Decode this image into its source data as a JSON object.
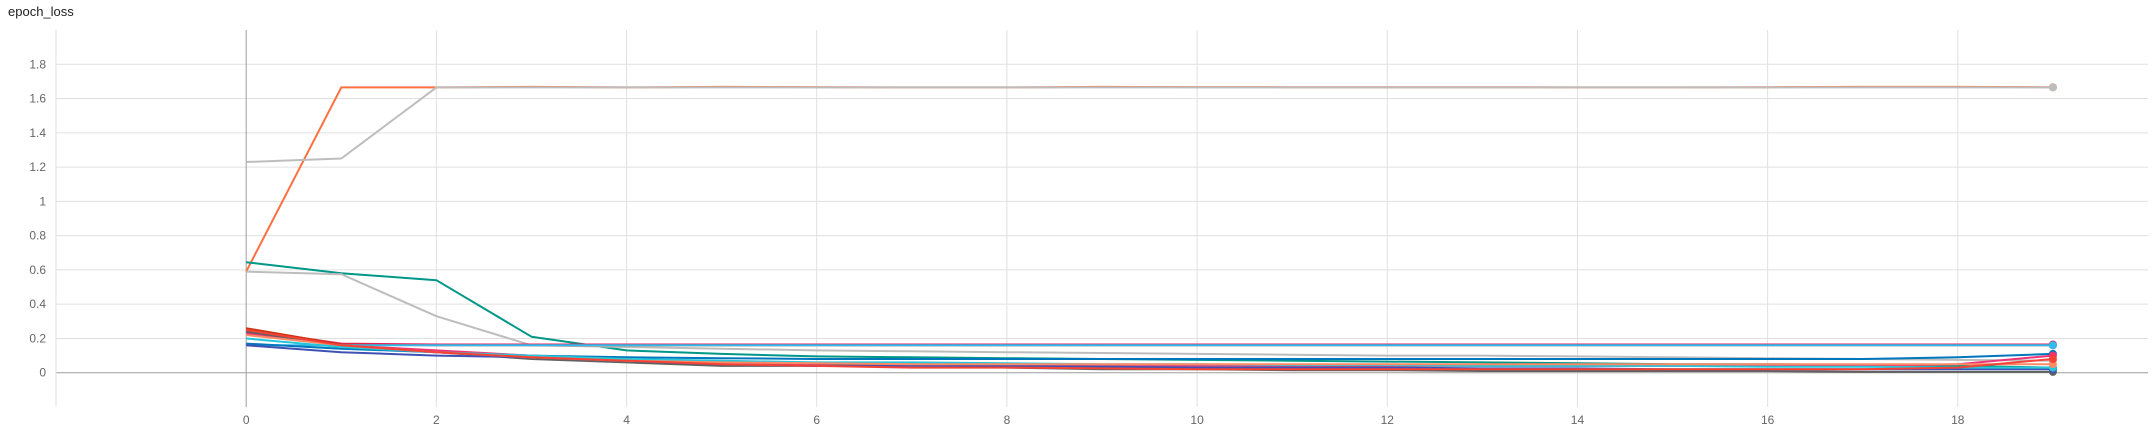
{
  "chart_data": {
    "type": "line",
    "title": "epoch_loss",
    "xlabel": "",
    "ylabel": "",
    "xlim": [
      -2,
      20
    ],
    "ylim": [
      -0.2,
      2.0
    ],
    "x_ticks": [
      0,
      2,
      4,
      6,
      8,
      10,
      12,
      14,
      16,
      18
    ],
    "y_ticks": [
      0,
      0.2,
      0.4,
      0.6,
      0.8,
      1,
      1.2,
      1.4,
      1.6,
      1.8
    ],
    "grid": true,
    "series": [
      {
        "color": "#ff7043",
        "values": [
          0.59,
          1.665,
          1.665,
          1.668,
          1.665,
          1.668,
          1.667,
          1.665,
          1.665,
          1.668,
          1.667,
          1.666,
          1.666,
          1.666,
          1.665,
          1.665,
          1.666,
          1.668,
          1.668,
          1.666
        ]
      },
      {
        "color": "#bdbdbd",
        "values": [
          1.23,
          1.25,
          1.665,
          1.665,
          1.665,
          1.665,
          1.665,
          1.665,
          1.665,
          1.665,
          1.665,
          1.665,
          1.665,
          1.665,
          1.665,
          1.665,
          1.665,
          1.665,
          1.665,
          1.665
        ]
      },
      {
        "color": "#009688",
        "values": [
          0.645,
          0.58,
          0.54,
          0.21,
          0.13,
          0.11,
          0.095,
          0.09,
          0.085,
          0.08,
          0.075,
          0.07,
          0.065,
          0.06,
          0.055,
          0.05,
          0.05,
          0.045,
          0.04,
          0.03
        ]
      },
      {
        "color": "#bdbdbd",
        "values": [
          0.59,
          0.575,
          0.33,
          0.16,
          0.15,
          0.14,
          0.13,
          0.125,
          0.12,
          0.115,
          0.11,
          0.105,
          0.1,
          0.1,
          0.095,
          0.09,
          0.085,
          0.08,
          0.075,
          0.07
        ]
      },
      {
        "color": "#e91e63",
        "values": [
          0.25,
          0.17,
          0.165,
          0.165,
          0.165,
          0.165,
          0.165,
          0.165,
          0.165,
          0.165,
          0.165,
          0.165,
          0.165,
          0.165,
          0.165,
          0.165,
          0.165,
          0.165,
          0.165,
          0.165
        ]
      },
      {
        "color": "#cc3311",
        "values": [
          0.26,
          0.165,
          0.16,
          0.16,
          0.16,
          0.16,
          0.16,
          0.16,
          0.16,
          0.16,
          0.16,
          0.16,
          0.16,
          0.16,
          0.16,
          0.16,
          0.16,
          0.16,
          0.16,
          0.16
        ]
      },
      {
        "color": "#33bbee",
        "values": [
          0.16,
          0.16,
          0.16,
          0.16,
          0.16,
          0.16,
          0.16,
          0.16,
          0.16,
          0.16,
          0.16,
          0.16,
          0.16,
          0.16,
          0.16,
          0.16,
          0.16,
          0.16,
          0.16,
          0.16
        ]
      },
      {
        "color": "#0077bb",
        "values": [
          0.17,
          0.14,
          0.12,
          0.1,
          0.09,
          0.085,
          0.08,
          0.08,
          0.08,
          0.08,
          0.08,
          0.08,
          0.08,
          0.08,
          0.08,
          0.08,
          0.08,
          0.08,
          0.09,
          0.11
        ]
      },
      {
        "color": "#ee3377",
        "values": [
          0.23,
          0.16,
          0.13,
          0.1,
          0.07,
          0.06,
          0.05,
          0.05,
          0.045,
          0.04,
          0.04,
          0.04,
          0.04,
          0.04,
          0.04,
          0.04,
          0.04,
          0.04,
          0.05,
          0.1
        ]
      },
      {
        "color": "#616161",
        "values": [
          0.24,
          0.16,
          0.12,
          0.08,
          0.06,
          0.04,
          0.04,
          0.05,
          0.03,
          0.02,
          0.02,
          0.015,
          0.015,
          0.01,
          0.01,
          0.01,
          0.01,
          0.005,
          0.005,
          0.005
        ]
      },
      {
        "color": "#3f51b5",
        "values": [
          0.16,
          0.12,
          0.1,
          0.09,
          0.07,
          0.05,
          0.04,
          0.04,
          0.04,
          0.035,
          0.03,
          0.03,
          0.03,
          0.025,
          0.025,
          0.02,
          0.02,
          0.02,
          0.02,
          0.02
        ]
      },
      {
        "color": "#26c6da",
        "values": [
          0.2,
          0.15,
          0.12,
          0.1,
          0.08,
          0.07,
          0.06,
          0.06,
          0.055,
          0.05,
          0.05,
          0.045,
          0.045,
          0.04,
          0.04,
          0.04,
          0.035,
          0.035,
          0.03,
          0.03
        ]
      },
      {
        "color": "#ff8a65",
        "values": [
          0.22,
          0.16,
          0.12,
          0.09,
          0.07,
          0.06,
          0.055,
          0.05,
          0.05,
          0.05,
          0.05,
          0.05,
          0.05,
          0.05,
          0.05,
          0.05,
          0.05,
          0.05,
          0.05,
          0.05
        ]
      },
      {
        "color": "#f44336",
        "values": [
          0.25,
          0.16,
          0.12,
          0.09,
          0.07,
          0.05,
          0.04,
          0.03,
          0.03,
          0.025,
          0.02,
          0.02,
          0.02,
          0.02,
          0.02,
          0.02,
          0.02,
          0.02,
          0.03,
          0.08
        ]
      }
    ]
  }
}
